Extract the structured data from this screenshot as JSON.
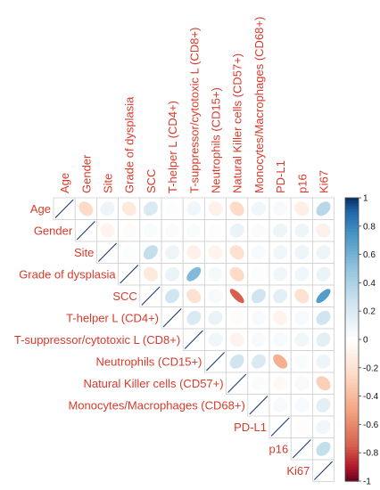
{
  "chart_data": {
    "type": "heatmap",
    "variables": [
      "Age",
      "Gender",
      "Site",
      "Grade of dysplasia",
      "SCC",
      "T-helper L (CD4+)",
      "T-suppressor/cytotoxic L (CD8+)",
      "Neutrophils (CD15+)",
      "Natural Killer cells (CD57+)",
      "Monocytes/Macrophages (CD68+)",
      "PD-L1",
      "p16",
      "Ki67"
    ],
    "label_color": "#d83a2b",
    "upper_triangle_correlations": [
      [
        1,
        -0.25,
        0.1,
        -0.15,
        0.2,
        0.02,
        0.08,
        -0.1,
        -0.25,
        0.08,
        0.05,
        -0.12,
        0.35
      ],
      [
        null,
        1,
        -0.08,
        -0.03,
        0.03,
        0.03,
        0.03,
        0.02,
        0.12,
        0.03,
        0.1,
        0.1,
        -0.1
      ],
      [
        null,
        null,
        1,
        0.02,
        0.3,
        0.1,
        -0.1,
        -0.08,
        -0.2,
        0.05,
        0.08,
        0.1,
        0.1
      ],
      [
        null,
        null,
        null,
        1,
        -0.15,
        0.12,
        0.55,
        0.06,
        -0.25,
        0.02,
        0.08,
        0.08,
        0.12
      ],
      [
        null,
        null,
        null,
        null,
        1,
        0.25,
        -0.2,
        0.05,
        -0.75,
        0.25,
        0.15,
        -0.2,
        0.7
      ],
      [
        null,
        null,
        null,
        null,
        null,
        1,
        0.2,
        0.12,
        -0.03,
        0.05,
        -0.08,
        0.05,
        0.25
      ],
      [
        null,
        null,
        null,
        null,
        null,
        null,
        1,
        0.08,
        -0.08,
        0.05,
        0.05,
        0.08,
        0.15
      ],
      [
        null,
        null,
        null,
        null,
        null,
        null,
        null,
        1,
        0.25,
        0.2,
        -0.45,
        0.03,
        0.1
      ],
      [
        null,
        null,
        null,
        null,
        null,
        null,
        null,
        null,
        1,
        0.03,
        -0.05,
        0.05,
        -0.3
      ],
      [
        null,
        null,
        null,
        null,
        null,
        null,
        null,
        null,
        null,
        1,
        0.05,
        0.05,
        0.15
      ],
      [
        null,
        null,
        null,
        null,
        null,
        null,
        null,
        null,
        null,
        null,
        1,
        -0.02,
        0.08
      ],
      [
        null,
        null,
        null,
        null,
        null,
        null,
        null,
        null,
        null,
        null,
        null,
        1,
        0.3
      ],
      [
        null,
        null,
        null,
        null,
        null,
        null,
        null,
        null,
        null,
        null,
        null,
        null,
        1
      ]
    ],
    "colorbar": {
      "range": [
        -1,
        1
      ],
      "ticks": [
        "1",
        "0.8",
        "0.6",
        "0.4",
        "0.2",
        "0",
        "-0.2",
        "-0.4",
        "-0.6",
        "-0.8",
        "-1"
      ],
      "low_color": "#67001f",
      "mid_color": "#ffffff",
      "high_color": "#053061"
    }
  }
}
